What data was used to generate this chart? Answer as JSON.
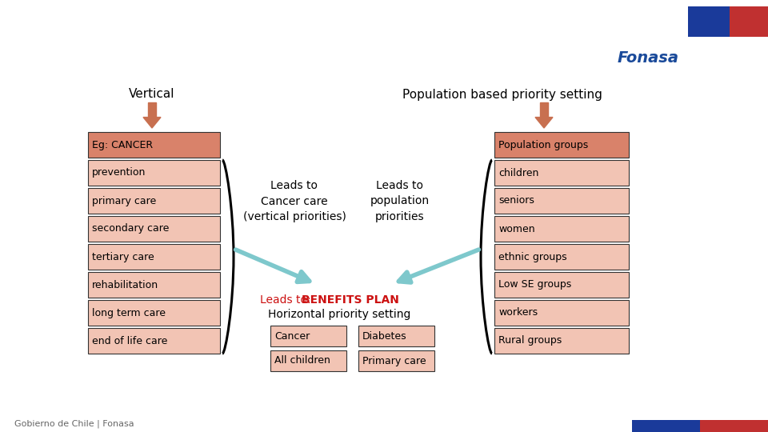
{
  "bg_color": "#ffffff",
  "title_vertical": "Vertical",
  "title_population": "Population based priority setting",
  "left_boxes": [
    {
      "label": "Eg: CANCER",
      "bold": false
    },
    {
      "label": "prevention",
      "bold": false
    },
    {
      "label": "primary care",
      "bold": false
    },
    {
      "label": "secondary care",
      "bold": false
    },
    {
      "label": "tertiary care",
      "bold": false
    },
    {
      "label": "rehabilitation",
      "bold": false
    },
    {
      "label": "long term care",
      "bold": false
    },
    {
      "label": "end of life care",
      "bold": false
    }
  ],
  "right_boxes": [
    {
      "label": "Population groups",
      "bold": false
    },
    {
      "label": "children",
      "bold": false
    },
    {
      "label": "seniors",
      "bold": false
    },
    {
      "label": "women",
      "bold": false
    },
    {
      "label": "ethnic groups",
      "bold": false
    },
    {
      "label": "Low SE groups",
      "bold": false
    },
    {
      "label": "workers",
      "bold": false
    },
    {
      "label": "Rural groups",
      "bold": false
    }
  ],
  "box_fill_top": "#d9826a",
  "box_fill_rest": "#f2c4b4",
  "box_edge_color": "#333333",
  "arrow_down_color": "#c87050",
  "arrow_teal_color": "#7ec8cc",
  "leads_to_cancer_text": "Leads to\nCancer care\n(vertical priorities)",
  "leads_to_population_text": "Leads to\npopulation\npriorities",
  "benefits_label": "Leads to: ",
  "benefits_bold": "BENEFITS PLAN",
  "benefits_sub": "Horizontal priority setting",
  "bottom_boxes": [
    "Cancer",
    "Diabetes",
    "All children",
    "Primary care"
  ],
  "bottom_box_color": "#f2c4b4",
  "footer_text": "Gobierno de Chile | Fonasa",
  "flag_blue": "#1a3a9a",
  "flag_red": "#c03030",
  "fonasa_color": "#1a4a9a"
}
